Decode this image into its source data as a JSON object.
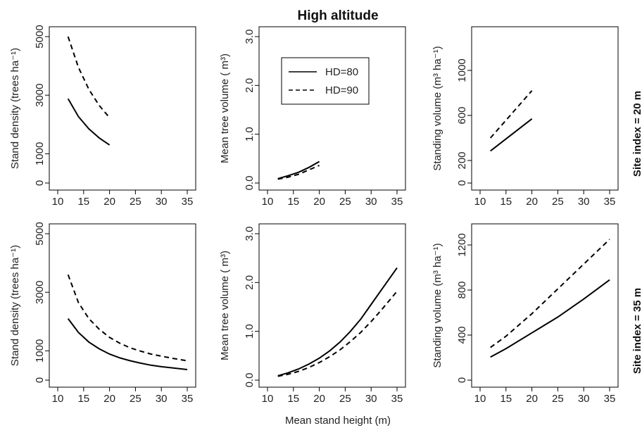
{
  "figure": {
    "title": "High altitude",
    "xlabel": "Mean stand height (m)",
    "row_labels": [
      "Site index = 20 m",
      "Site index = 35 m"
    ],
    "legend": [
      "HD=80",
      "HD=90"
    ]
  },
  "chart_data": [
    {
      "type": "line",
      "row": 0,
      "col": 0,
      "ylabel": "Stand density (trees ha⁻¹)",
      "xlim": [
        10,
        35
      ],
      "ylim": [
        0,
        5000
      ],
      "xticks": [
        10,
        15,
        20,
        25,
        30,
        35
      ],
      "yticks": [
        0,
        1000,
        3000,
        5000
      ],
      "series": [
        {
          "name": "HD=80",
          "style": "solid",
          "x": [
            12,
            14,
            16,
            18,
            20
          ],
          "y": [
            2880,
            2270,
            1850,
            1540,
            1300
          ]
        },
        {
          "name": "HD=90",
          "style": "dashed",
          "x": [
            12,
            14,
            16,
            18,
            20
          ],
          "y": [
            5000,
            3950,
            3200,
            2650,
            2230
          ]
        }
      ]
    },
    {
      "type": "line",
      "row": 0,
      "col": 1,
      "ylabel": "Mean tree volume ( m³)",
      "xlim": [
        10,
        35
      ],
      "ylim": [
        0,
        3
      ],
      "xticks": [
        10,
        15,
        20,
        25,
        30,
        35
      ],
      "yticks": [
        0.0,
        1.0,
        2.0,
        3.0
      ],
      "ytick_labels": [
        "0.0",
        "1.0",
        "2.0",
        "3.0"
      ],
      "series": [
        {
          "name": "HD=80",
          "style": "solid",
          "x": [
            12,
            14,
            16,
            18,
            20
          ],
          "y": [
            0.09,
            0.15,
            0.22,
            0.32,
            0.44
          ]
        },
        {
          "name": "HD=90",
          "style": "dashed",
          "x": [
            12,
            14,
            16,
            18,
            20
          ],
          "y": [
            0.08,
            0.12,
            0.18,
            0.27,
            0.36
          ]
        }
      ],
      "legend": true
    },
    {
      "type": "line",
      "row": 0,
      "col": 2,
      "ylabel": "Standing volume (m³  ha⁻¹)",
      "xlim": [
        10,
        35
      ],
      "ylim": [
        0,
        1300
      ],
      "xticks": [
        10,
        15,
        20,
        25,
        30,
        35
      ],
      "yticks": [
        0,
        200,
        600,
        1000
      ],
      "series": [
        {
          "name": "HD=80",
          "style": "solid",
          "x": [
            12,
            20
          ],
          "y": [
            285,
            570
          ]
        },
        {
          "name": "HD=90",
          "style": "dashed",
          "x": [
            12,
            20
          ],
          "y": [
            400,
            820
          ]
        }
      ]
    },
    {
      "type": "line",
      "row": 1,
      "col": 0,
      "ylabel": "Stand density (trees ha⁻¹)",
      "xlim": [
        10,
        35
      ],
      "ylim": [
        0,
        5000
      ],
      "xticks": [
        10,
        15,
        20,
        25,
        30,
        35
      ],
      "yticks": [
        0,
        1000,
        3000,
        5000
      ],
      "series": [
        {
          "name": "HD=80",
          "style": "solid",
          "x": [
            12,
            14,
            16,
            18,
            20,
            22,
            24,
            26,
            28,
            30,
            32,
            35
          ],
          "y": [
            2100,
            1630,
            1300,
            1070,
            890,
            760,
            660,
            580,
            510,
            460,
            420,
            360
          ]
        },
        {
          "name": "HD=90",
          "style": "dashed",
          "x": [
            12,
            14,
            16,
            18,
            20,
            22,
            24,
            26,
            28,
            30,
            32,
            35
          ],
          "y": [
            3600,
            2650,
            2100,
            1740,
            1460,
            1260,
            1100,
            990,
            890,
            820,
            750,
            660
          ]
        }
      ]
    },
    {
      "type": "line",
      "row": 1,
      "col": 1,
      "ylabel": "Mean tree volume ( m³)",
      "xlim": [
        10,
        35
      ],
      "ylim": [
        0,
        3
      ],
      "xticks": [
        10,
        15,
        20,
        25,
        30,
        35
      ],
      "yticks": [
        0.0,
        1.0,
        2.0,
        3.0
      ],
      "ytick_labels": [
        "0.0",
        "1.0",
        "2.0",
        "3.0"
      ],
      "series": [
        {
          "name": "HD=80",
          "style": "solid",
          "x": [
            12,
            14,
            16,
            18,
            20,
            22,
            24,
            26,
            28,
            30,
            32,
            35
          ],
          "y": [
            0.09,
            0.15,
            0.23,
            0.33,
            0.45,
            0.6,
            0.78,
            1.0,
            1.25,
            1.55,
            1.85,
            2.3
          ]
        },
        {
          "name": "HD=90",
          "style": "dashed",
          "x": [
            12,
            14,
            16,
            18,
            20,
            22,
            24,
            26,
            28,
            30,
            32,
            35
          ],
          "y": [
            0.08,
            0.12,
            0.18,
            0.26,
            0.36,
            0.48,
            0.62,
            0.79,
            0.98,
            1.2,
            1.44,
            1.82
          ]
        }
      ]
    },
    {
      "type": "line",
      "row": 1,
      "col": 2,
      "ylabel": "Standing volume (m³  ha⁻¹)",
      "xlim": [
        10,
        35
      ],
      "ylim": [
        0,
        1300
      ],
      "xticks": [
        10,
        15,
        20,
        25,
        30,
        35
      ],
      "yticks": [
        0,
        400,
        800,
        1200
      ],
      "series": [
        {
          "name": "HD=80",
          "style": "solid",
          "x": [
            12,
            15,
            20,
            25,
            30,
            35
          ],
          "y": [
            205,
            280,
            420,
            560,
            720,
            890
          ]
        },
        {
          "name": "HD=90",
          "style": "dashed",
          "x": [
            12,
            15,
            20,
            25,
            30,
            35
          ],
          "y": [
            290,
            390,
            590,
            810,
            1030,
            1250
          ]
        }
      ]
    }
  ]
}
